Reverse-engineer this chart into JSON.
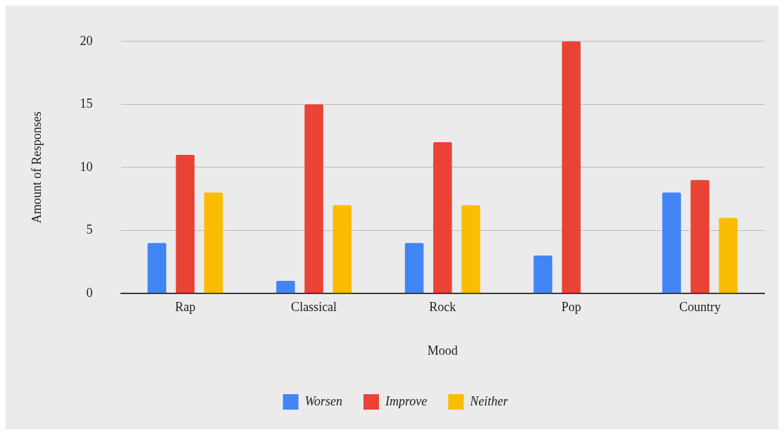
{
  "chart_data": {
    "type": "bar",
    "xlabel": "Mood",
    "ylabel": "Amount of Responses",
    "categories": [
      "Rap",
      "Classical",
      "Rock",
      "Pop",
      "Country"
    ],
    "series": [
      {
        "name": "Worsen",
        "color": "#4285f4",
        "values": [
          4,
          1,
          4,
          3,
          8
        ]
      },
      {
        "name": "Improve",
        "color": "#ea4335",
        "values": [
          11,
          15,
          12,
          20,
          9
        ]
      },
      {
        "name": "Neither",
        "color": "#fbbc04",
        "values": [
          8,
          7,
          7,
          0,
          6
        ]
      }
    ],
    "ylim": [
      0,
      20
    ],
    "yticks": [
      0,
      5,
      10,
      15,
      20
    ],
    "grid": "y",
    "legend": "bottom"
  }
}
